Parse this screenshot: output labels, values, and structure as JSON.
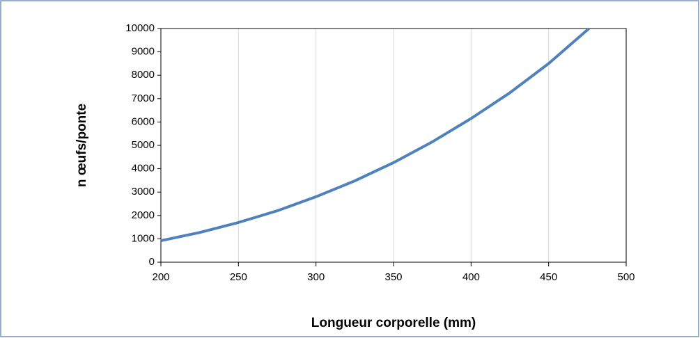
{
  "chart_data": {
    "type": "line",
    "xlabel": "Longueur corporelle (mm)",
    "ylabel": "n œufs/ponte",
    "series": [
      {
        "name": "n œufs/ponte",
        "color": "#4f81bd",
        "x": [
          200,
          225,
          250,
          275,
          300,
          325,
          350,
          375,
          400,
          425,
          450,
          476
        ],
        "values": [
          920,
          1270,
          1700,
          2200,
          2800,
          3480,
          4260,
          5150,
          6150,
          7250,
          8500,
          10000
        ]
      }
    ],
    "xlim": [
      200,
      500
    ],
    "xticks": [
      200,
      250,
      300,
      350,
      400,
      450,
      500
    ],
    "ylim": [
      0,
      10000
    ],
    "yticks": [
      0,
      1000,
      2000,
      3000,
      4000,
      5000,
      6000,
      7000,
      8000,
      9000,
      10000
    ],
    "grid": true
  }
}
